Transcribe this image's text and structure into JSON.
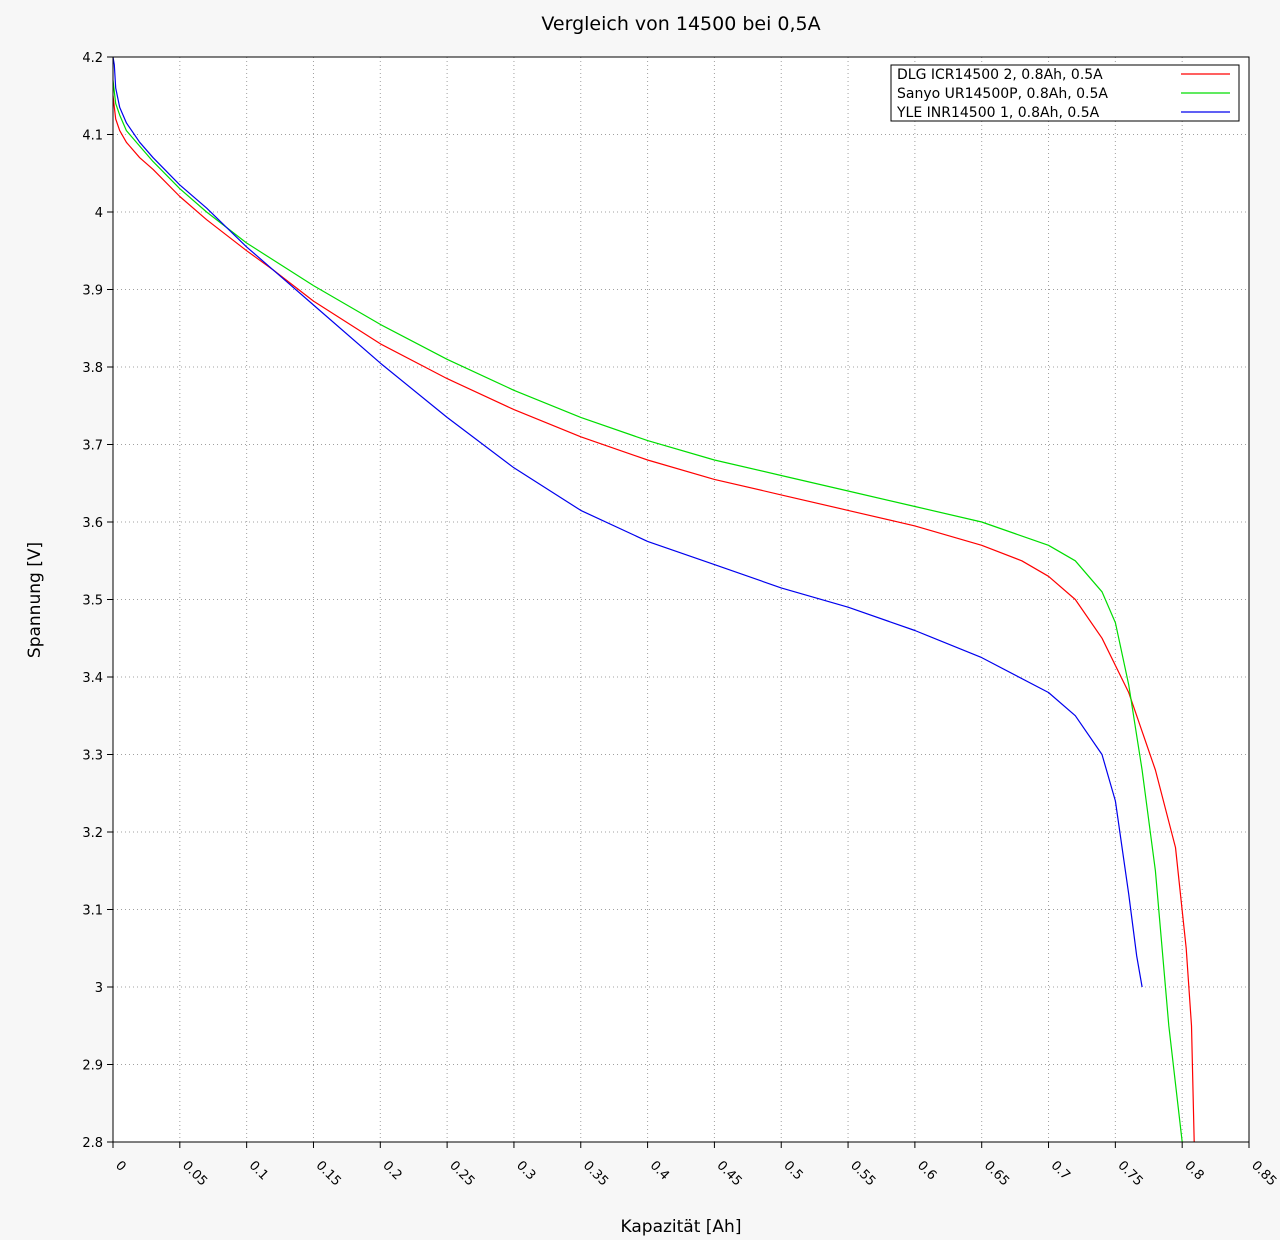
{
  "chart_data": {
    "type": "line",
    "title": "Vergleich von 14500 bei 0,5A",
    "xlabel": "Kapazität [Ah]",
    "ylabel": "Spannung [V]",
    "xlim": [
      0,
      0.85
    ],
    "ylim": [
      2.8,
      4.2
    ],
    "xticks": [
      "0",
      "0.05",
      "0.1",
      "0.15",
      "0.2",
      "0.25",
      "0.3",
      "0.35",
      "0.4",
      "0.45",
      "0.5",
      "0.55",
      "0.6",
      "0.65",
      "0.7",
      "0.75",
      "0.8",
      "0.85"
    ],
    "yticks": [
      "4.2",
      "4.1",
      "4",
      "3.9",
      "3.8",
      "3.7",
      "3.6",
      "3.5",
      "3.4",
      "3.3",
      "3.2",
      "3.1",
      "3",
      "2.9",
      "2.8"
    ],
    "grid": true,
    "legend_position": "top-right",
    "series": [
      {
        "name": "DLG ICR14500 2, 0.8Ah, 0.5A",
        "color": "#ff0000",
        "points": [
          [
            0,
            4.15
          ],
          [
            0.002,
            4.12
          ],
          [
            0.005,
            4.105
          ],
          [
            0.01,
            4.09
          ],
          [
            0.02,
            4.07
          ],
          [
            0.03,
            4.055
          ],
          [
            0.05,
            4.02
          ],
          [
            0.07,
            3.99
          ],
          [
            0.1,
            3.95
          ],
          [
            0.12,
            3.925
          ],
          [
            0.15,
            3.885
          ],
          [
            0.2,
            3.83
          ],
          [
            0.25,
            3.785
          ],
          [
            0.3,
            3.745
          ],
          [
            0.35,
            3.71
          ],
          [
            0.4,
            3.68
          ],
          [
            0.45,
            3.655
          ],
          [
            0.5,
            3.635
          ],
          [
            0.55,
            3.615
          ],
          [
            0.6,
            3.595
          ],
          [
            0.65,
            3.57
          ],
          [
            0.68,
            3.55
          ],
          [
            0.7,
            3.53
          ],
          [
            0.72,
            3.5
          ],
          [
            0.74,
            3.45
          ],
          [
            0.76,
            3.38
          ],
          [
            0.78,
            3.28
          ],
          [
            0.795,
            3.18
          ],
          [
            0.803,
            3.05
          ],
          [
            0.807,
            2.95
          ],
          [
            0.809,
            2.8
          ]
        ]
      },
      {
        "name": "Sanyo UR14500P, 0.8Ah, 0.5A",
        "color": "#00dd00",
        "points": [
          [
            0,
            4.17
          ],
          [
            0.002,
            4.14
          ],
          [
            0.005,
            4.125
          ],
          [
            0.01,
            4.105
          ],
          [
            0.02,
            4.085
          ],
          [
            0.03,
            4.065
          ],
          [
            0.05,
            4.03
          ],
          [
            0.07,
            4.0
          ],
          [
            0.1,
            3.96
          ],
          [
            0.15,
            3.905
          ],
          [
            0.2,
            3.855
          ],
          [
            0.25,
            3.81
          ],
          [
            0.3,
            3.77
          ],
          [
            0.35,
            3.735
          ],
          [
            0.4,
            3.705
          ],
          [
            0.45,
            3.68
          ],
          [
            0.5,
            3.66
          ],
          [
            0.55,
            3.64
          ],
          [
            0.6,
            3.62
          ],
          [
            0.65,
            3.6
          ],
          [
            0.7,
            3.57
          ],
          [
            0.72,
            3.55
          ],
          [
            0.74,
            3.51
          ],
          [
            0.75,
            3.47
          ],
          [
            0.76,
            3.39
          ],
          [
            0.77,
            3.28
          ],
          [
            0.78,
            3.15
          ],
          [
            0.79,
            2.95
          ],
          [
            0.8,
            2.8
          ]
        ]
      },
      {
        "name": "YLE INR14500 1, 0.8Ah, 0.5A",
        "color": "#0000ee",
        "points": [
          [
            0,
            4.2
          ],
          [
            0.001,
            4.19
          ],
          [
            0.002,
            4.16
          ],
          [
            0.005,
            4.135
          ],
          [
            0.01,
            4.115
          ],
          [
            0.02,
            4.09
          ],
          [
            0.03,
            4.07
          ],
          [
            0.05,
            4.035
          ],
          [
            0.07,
            4.005
          ],
          [
            0.1,
            3.955
          ],
          [
            0.13,
            3.91
          ],
          [
            0.15,
            3.88
          ],
          [
            0.2,
            3.805
          ],
          [
            0.25,
            3.735
          ],
          [
            0.3,
            3.67
          ],
          [
            0.35,
            3.615
          ],
          [
            0.4,
            3.575
          ],
          [
            0.45,
            3.545
          ],
          [
            0.5,
            3.515
          ],
          [
            0.55,
            3.49
          ],
          [
            0.6,
            3.46
          ],
          [
            0.65,
            3.425
          ],
          [
            0.7,
            3.38
          ],
          [
            0.72,
            3.35
          ],
          [
            0.74,
            3.3
          ],
          [
            0.75,
            3.24
          ],
          [
            0.76,
            3.12
          ],
          [
            0.766,
            3.04
          ],
          [
            0.77,
            3.0
          ]
        ]
      }
    ]
  }
}
